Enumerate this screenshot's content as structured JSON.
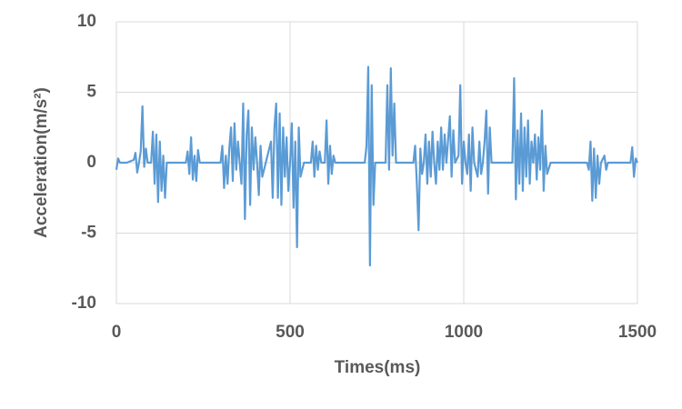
{
  "chart_data": {
    "type": "line",
    "x_label": "Times(ms)",
    "y_label": "Acceleration(m/s²)",
    "x": [
      0,
      5,
      10,
      30,
      50,
      55,
      60,
      65,
      70,
      75,
      80,
      85,
      90,
      100,
      105,
      110,
      115,
      120,
      125,
      130,
      135,
      140,
      145,
      200,
      205,
      210,
      215,
      220,
      225,
      230,
      235,
      240,
      300,
      305,
      310,
      315,
      320,
      325,
      330,
      335,
      340,
      345,
      350,
      355,
      360,
      365,
      370,
      375,
      380,
      385,
      390,
      395,
      400,
      405,
      410,
      415,
      420,
      430,
      445,
      450,
      455,
      460,
      465,
      470,
      475,
      480,
      485,
      490,
      495,
      500,
      505,
      510,
      515,
      520,
      525,
      530,
      540,
      560,
      565,
      570,
      575,
      580,
      585,
      590,
      600,
      605,
      610,
      615,
      620,
      625,
      630,
      715,
      720,
      725,
      730,
      735,
      740,
      745,
      775,
      780,
      785,
      790,
      795,
      800,
      805,
      855,
      860,
      865,
      870,
      875,
      880,
      885,
      890,
      895,
      900,
      905,
      910,
      915,
      920,
      925,
      930,
      935,
      940,
      945,
      950,
      960,
      965,
      970,
      975,
      985,
      990,
      995,
      1000,
      1005,
      1010,
      1015,
      1020,
      1025,
      1030,
      1040,
      1045,
      1050,
      1055,
      1060,
      1065,
      1070,
      1075,
      1080,
      1090,
      1140,
      1145,
      1150,
      1155,
      1160,
      1165,
      1170,
      1175,
      1180,
      1185,
      1190,
      1195,
      1200,
      1205,
      1210,
      1215,
      1220,
      1225,
      1230,
      1235,
      1240,
      1250,
      1355,
      1360,
      1365,
      1370,
      1375,
      1380,
      1385,
      1390,
      1395,
      1405,
      1410,
      1415,
      1480,
      1485,
      1490,
      1495,
      1500
    ],
    "series": [
      {
        "color": "#5b9bd5",
        "values": [
          -0.5,
          0.3,
          0,
          0,
          0.2,
          0.7,
          -0.7,
          0,
          0.8,
          4.0,
          -0.3,
          1.0,
          0,
          0,
          2.2,
          -1.5,
          2.0,
          -2.8,
          1.5,
          -2.0,
          0.5,
          -2.5,
          0,
          0,
          0.8,
          -0.8,
          1.8,
          -1.2,
          0.5,
          -1.3,
          0.9,
          0,
          0,
          1.2,
          -1.8,
          0.5,
          -1.5,
          1.0,
          2.5,
          -1.3,
          2.8,
          -0.5,
          1.5,
          0,
          -1.5,
          4.2,
          -4.0,
          2.0,
          3.7,
          -3.0,
          2.5,
          -0.5,
          1.8,
          0,
          -2.3,
          1.2,
          -1.0,
          0,
          1.5,
          -2.5,
          2.5,
          4.2,
          -2.5,
          3.5,
          -3.0,
          2.5,
          -1.0,
          1.8,
          -2.0,
          0,
          2.8,
          -3.2,
          1.5,
          -6.0,
          2.5,
          -1.0,
          0,
          0,
          1.5,
          -1.0,
          1.2,
          -0.5,
          0.8,
          0,
          0,
          3.0,
          -1.5,
          1.2,
          -0.8,
          0.5,
          0,
          0,
          1.2,
          6.8,
          -7.3,
          5.5,
          -3.0,
          0,
          0,
          5.5,
          -0.5,
          6.7,
          0.5,
          4.2,
          0,
          0,
          1.2,
          -1.5,
          -4.8,
          1.0,
          -0.8,
          0,
          2.0,
          -1.5,
          1.5,
          -1.0,
          2.2,
          0,
          -1.5,
          1.5,
          -0.5,
          2.5,
          -0.5,
          2.0,
          0,
          3.3,
          -1.0,
          2.3,
          0,
          0.5,
          5.5,
          -1.5,
          1.5,
          0,
          -0.8,
          2.0,
          -2.0,
          2.5,
          0,
          -1.0,
          1.5,
          -0.8,
          0,
          1.5,
          3.7,
          -2.2,
          2.5,
          0,
          0,
          0,
          6.0,
          -2.6,
          2.3,
          -1.5,
          3.5,
          -2.0,
          2.5,
          -1.0,
          3.0,
          -1.5,
          1.5,
          0,
          2.0,
          -1.2,
          1.8,
          -0.5,
          3.7,
          -2.0,
          1.2,
          -0.8,
          0,
          0,
          -0.5,
          1.5,
          -2.7,
          1.0,
          -2.5,
          0.5,
          -1.5,
          0,
          0.5,
          -0.5,
          0,
          0,
          1.1,
          -1.0,
          0.3,
          0
        ]
      }
    ],
    "xlim": [
      0,
      1500
    ],
    "xticks": [
      0,
      500,
      1000,
      1500
    ],
    "ylim": [
      -10,
      10
    ],
    "yticks": [
      -10,
      -5,
      0,
      5,
      10
    ],
    "grid": true
  }
}
